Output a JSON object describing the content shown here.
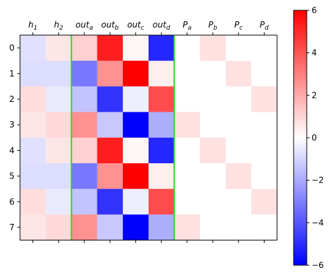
{
  "chart_data": {
    "type": "heatmap",
    "columns": [
      {
        "base": "h",
        "sub": "1"
      },
      {
        "base": "h",
        "sub": "2"
      },
      {
        "base": "out",
        "sub": "a"
      },
      {
        "base": "out",
        "sub": "b"
      },
      {
        "base": "out",
        "sub": "c"
      },
      {
        "base": "out",
        "sub": "d"
      },
      {
        "base": "P",
        "sub": "a"
      },
      {
        "base": "P",
        "sub": "b"
      },
      {
        "base": "P",
        "sub": "c"
      },
      {
        "base": "P",
        "sub": "d"
      }
    ],
    "rows": [
      "0",
      "1",
      "2",
      "3",
      "4",
      "5",
      "6",
      "7"
    ],
    "values": [
      [
        -0.7,
        0.6,
        1.1,
        5.3,
        0.2,
        -5.1,
        0,
        0.7,
        0,
        0
      ],
      [
        -0.8,
        -0.8,
        -3.2,
        2.6,
        6.0,
        0.4,
        0,
        0,
        0.7,
        0
      ],
      [
        0.8,
        -0.5,
        -1.4,
        -4.8,
        -0.4,
        4.2,
        0,
        0,
        0,
        0.7
      ],
      [
        0.6,
        0.9,
        2.6,
        -1.3,
        -6.0,
        -1.9,
        0.7,
        0,
        0,
        0
      ],
      [
        -0.7,
        0.6,
        1.1,
        5.3,
        0.2,
        -5.1,
        0,
        0.7,
        0,
        0
      ],
      [
        -0.8,
        -0.8,
        -3.2,
        2.6,
        6.0,
        0.4,
        0,
        0,
        0.7,
        0
      ],
      [
        0.8,
        -0.5,
        -1.4,
        -4.8,
        -0.4,
        4.2,
        0,
        0,
        0,
        0.7
      ],
      [
        0.6,
        0.9,
        2.6,
        -1.3,
        -6.0,
        -1.9,
        0.7,
        0,
        0,
        0
      ]
    ],
    "colormap": "bwr",
    "vmin": -6,
    "vmax": 6,
    "colorbar_ticks": [
      "6",
      "4",
      "2",
      "0",
      "−2",
      "−4",
      "−6"
    ],
    "separators_after_columns": [
      2,
      6
    ],
    "separator_color": "#22dd22"
  }
}
